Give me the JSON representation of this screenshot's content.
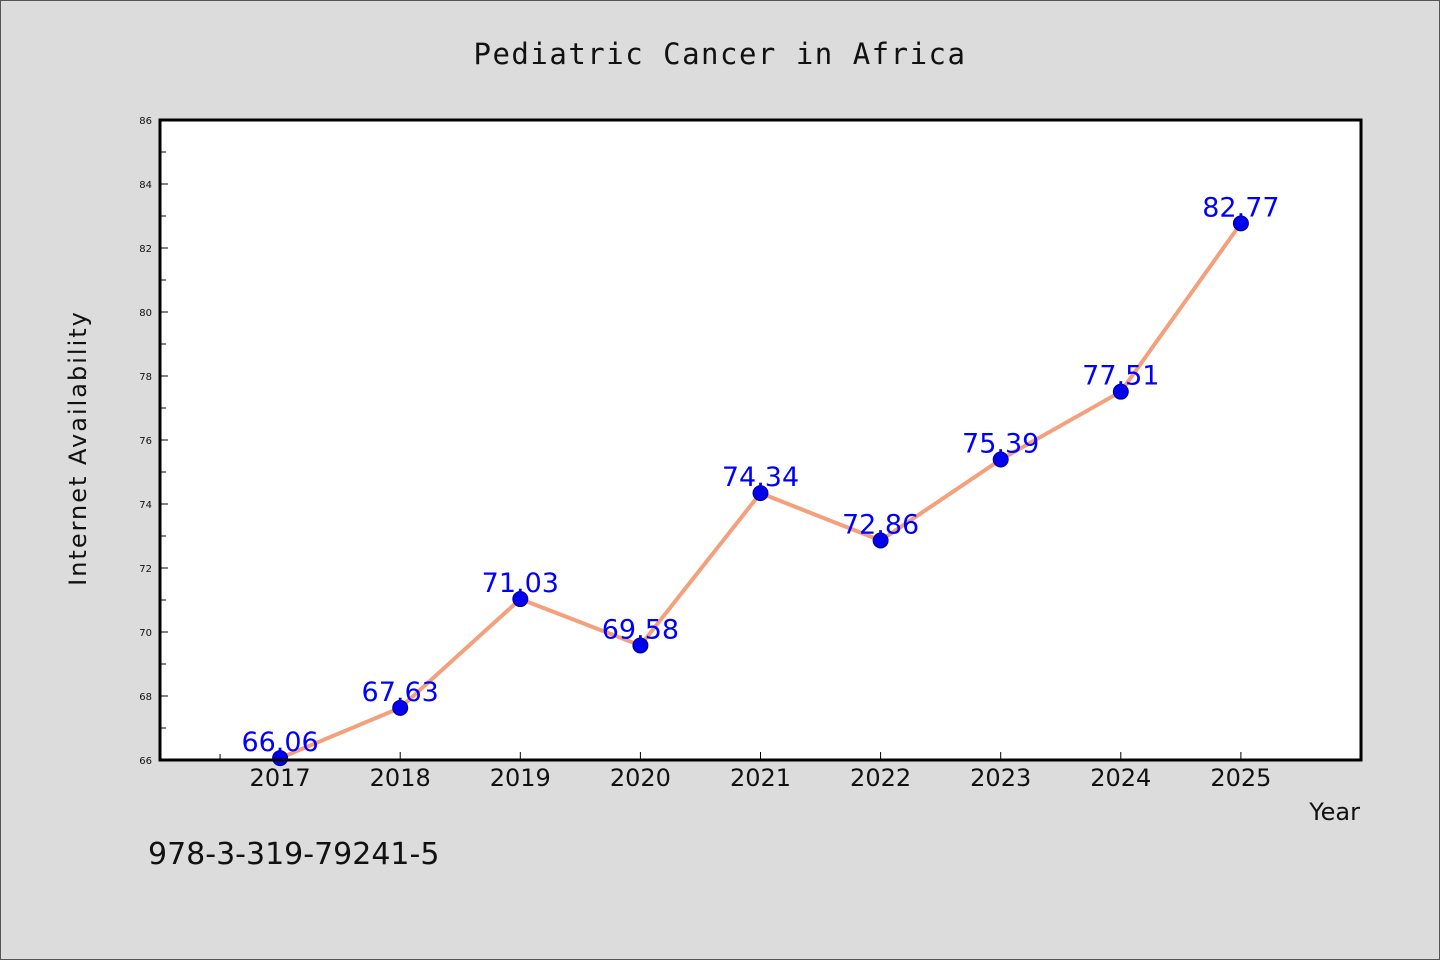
{
  "chart_data": {
    "type": "line",
    "title": "Pediatric Cancer in Africa",
    "xlabel": "Year",
    "ylabel": "Internet Availability",
    "categories": [
      "2017",
      "2018",
      "2019",
      "2020",
      "2021",
      "2022",
      "2023",
      "2024",
      "2025"
    ],
    "series": [
      {
        "values": [
          66.06,
          67.63,
          71.03,
          69.58,
          74.34,
          72.86,
          75.39,
          77.51,
          82.77
        ],
        "data_labels": [
          "66.06",
          "67.63",
          "71.03",
          "69.58",
          "74.34",
          "72.86",
          "75.39",
          "77.51",
          "82.77"
        ]
      }
    ],
    "ylim": [
      66,
      86
    ],
    "xlim": [
      2016.0,
      2026.0
    ],
    "yticks": [
      66,
      68,
      70,
      72,
      74,
      76,
      78,
      80,
      82,
      84,
      86
    ],
    "ytick_labels": [
      "66",
      "68",
      "70",
      "72",
      "74",
      "76",
      "78",
      "80",
      "82",
      "84",
      "86"
    ],
    "grid": false,
    "legend": "none",
    "colors": {
      "line": "#f4a07c",
      "marker": "#0000ee",
      "label": "#0000ff",
      "background": "#dcdcdc",
      "plot_background": "#ffffff"
    }
  },
  "footer_text": "978-3-319-79241-5"
}
